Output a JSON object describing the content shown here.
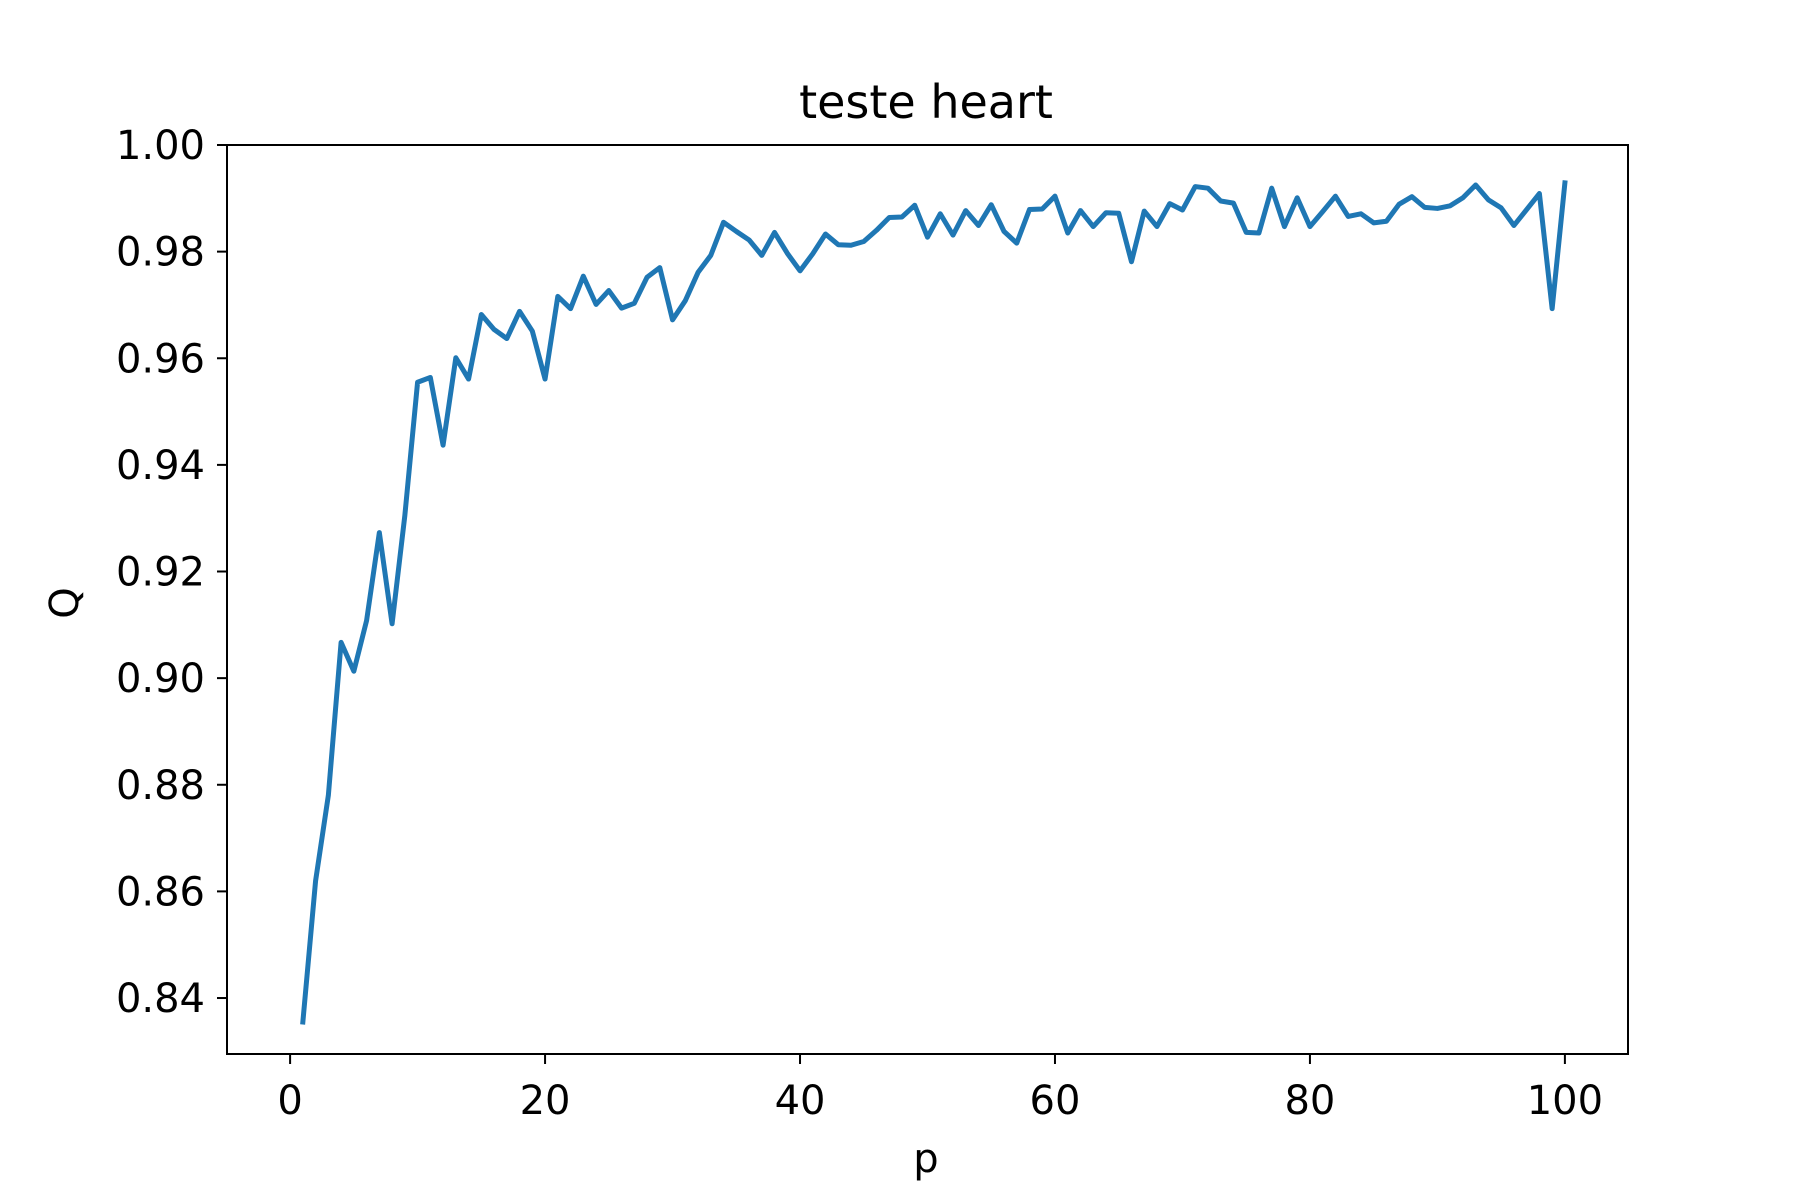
{
  "chart_data": {
    "type": "line",
    "title": "teste heart",
    "xlabel": "p",
    "ylabel": "Q",
    "xlim": [
      -4.95,
      104.95
    ],
    "ylim": [
      0.8295,
      1.0
    ],
    "xticks": [
      0,
      20,
      40,
      60,
      80,
      100
    ],
    "xtick_labels": [
      "0",
      "20",
      "40",
      "60",
      "80",
      "100"
    ],
    "yticks": [
      0.84,
      0.86,
      0.88,
      0.9,
      0.92,
      0.94,
      0.96,
      0.98,
      1.0
    ],
    "ytick_labels": [
      "0.84",
      "0.86",
      "0.88",
      "0.90",
      "0.92",
      "0.94",
      "0.96",
      "0.98",
      "1.00"
    ],
    "grid": false,
    "line_color": "#1f77b4",
    "series": [
      {
        "x": [
          1,
          2,
          3,
          4,
          5,
          6,
          7,
          8,
          9,
          10,
          11,
          12,
          13,
          14,
          15,
          16,
          17,
          18,
          19,
          20,
          21,
          22,
          23,
          24,
          25,
          26,
          27,
          28,
          29,
          30,
          31,
          32,
          33,
          34,
          35,
          36,
          37,
          38,
          39,
          40,
          41,
          42,
          43,
          44,
          45,
          46,
          47,
          48,
          49,
          50,
          51,
          52,
          53,
          54,
          55,
          56,
          57,
          58,
          59,
          60,
          61,
          62,
          63,
          64,
          65,
          66,
          67,
          68,
          69,
          70,
          71,
          72,
          73,
          74,
          75,
          76,
          77,
          78,
          79,
          80,
          81,
          82,
          83,
          84,
          85,
          86,
          87,
          88,
          89,
          90,
          91,
          92,
          93,
          94,
          95,
          96,
          97,
          98,
          99,
          100
        ],
        "values": [
          0.8355,
          0.862,
          0.878,
          0.9067,
          0.9013,
          0.9108,
          0.9273,
          0.9102,
          0.9305,
          0.9555,
          0.9564,
          0.9437,
          0.9601,
          0.9561,
          0.9682,
          0.9654,
          0.9637,
          0.9688,
          0.9651,
          0.9561,
          0.9716,
          0.9693,
          0.9754,
          0.9701,
          0.9727,
          0.9694,
          0.9703,
          0.9752,
          0.977,
          0.9672,
          0.9708,
          0.9761,
          0.9793,
          0.9855,
          0.9838,
          0.9822,
          0.9793,
          0.9836,
          0.9797,
          0.9764,
          0.9796,
          0.9833,
          0.9813,
          0.9812,
          0.9819,
          0.984,
          0.9864,
          0.9865,
          0.9887,
          0.9827,
          0.9871,
          0.9831,
          0.9877,
          0.9849,
          0.9888,
          0.9838,
          0.9816,
          0.9879,
          0.988,
          0.9904,
          0.9835,
          0.9877,
          0.9847,
          0.9873,
          0.9872,
          0.9781,
          0.9876,
          0.9847,
          0.989,
          0.9878,
          0.9922,
          0.9919,
          0.9895,
          0.9891,
          0.9836,
          0.9835,
          0.9919,
          0.9847,
          0.9901,
          0.9847,
          0.9875,
          0.9904,
          0.9866,
          0.9871,
          0.9854,
          0.9857,
          0.9889,
          0.9903,
          0.9883,
          0.9881,
          0.9886,
          0.9901,
          0.9925,
          0.9897,
          0.9882,
          0.9849,
          0.9879,
          0.9909,
          0.9693,
          0.9929
        ]
      }
    ]
  }
}
